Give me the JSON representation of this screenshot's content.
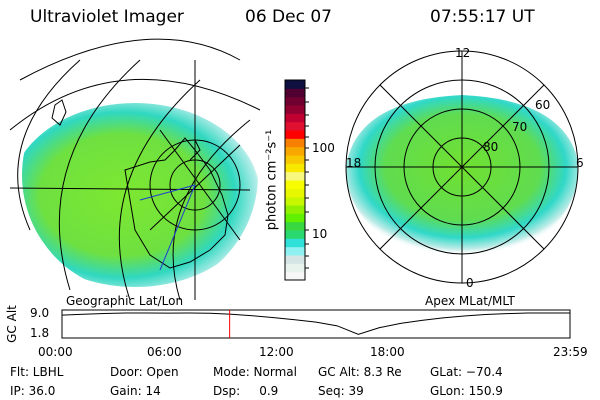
{
  "header": {
    "instrument": "Ultraviolet Imager",
    "date": "06 Dec 07",
    "time": "07:55:17 UT"
  },
  "geo_panel": {
    "label": "Geographic Lat/Lon"
  },
  "apex_panel": {
    "label": "Apex MLat/MLT",
    "mlt_labels": [
      "12",
      "18",
      "6",
      "0"
    ],
    "mlat_labels": [
      "60",
      "70",
      "80"
    ]
  },
  "colorbar": {
    "unit_label": "photon cm⁻²s⁻¹",
    "ticks": [
      "100",
      "10"
    ],
    "colors": [
      "#f7f7f7",
      "#e8f3ee",
      "#d5e5e5",
      "#8ef0f0",
      "#2ee0d8",
      "#2ad870",
      "#3ad840",
      "#60f000",
      "#90f000",
      "#c8f800",
      "#e8f800",
      "#f8fc00",
      "#f8f880",
      "#f8e800",
      "#f8c800",
      "#f8a800",
      "#f88000",
      "#ff0000",
      "#e01030",
      "#c00030",
      "#900030",
      "#700030",
      "#500030",
      "#101040"
    ],
    "min_tick": 10,
    "max_tick": 100
  },
  "timeline": {
    "ylabel": "GC Alt",
    "y_ticks": [
      "9.0",
      "1.8"
    ],
    "x_ticks": [
      "00:00",
      "06:00",
      "12:00",
      "18:00",
      "23:59"
    ],
    "current_time_hours": 7.92,
    "current_color": "#ff0000",
    "altitude_series_hours": [
      0,
      1,
      2,
      3,
      4,
      5,
      6,
      7,
      8,
      9,
      10,
      11,
      12,
      13,
      14,
      15,
      16,
      17,
      18,
      19,
      20,
      21,
      22,
      23,
      24
    ],
    "altitude_series_re": [
      8.3,
      8.6,
      8.85,
      9.0,
      9.0,
      8.95,
      9.0,
      8.9,
      8.6,
      8.1,
      7.5,
      6.8,
      6.0,
      4.8,
      2.0,
      4.2,
      5.6,
      6.6,
      7.4,
      8.0,
      8.5,
      8.8,
      9.0,
      9.0,
      9.0
    ]
  },
  "status": {
    "row1": [
      "Flt: LBHL",
      "Door: Open",
      "Mode: Normal",
      "GC Alt: 8.3 Re",
      "GLat: −70.4"
    ],
    "row2": [
      "IP: 36.0",
      "Gain: 14",
      "Dsp:     0.9",
      "Seq: 39",
      "GLon: 150.9"
    ]
  }
}
